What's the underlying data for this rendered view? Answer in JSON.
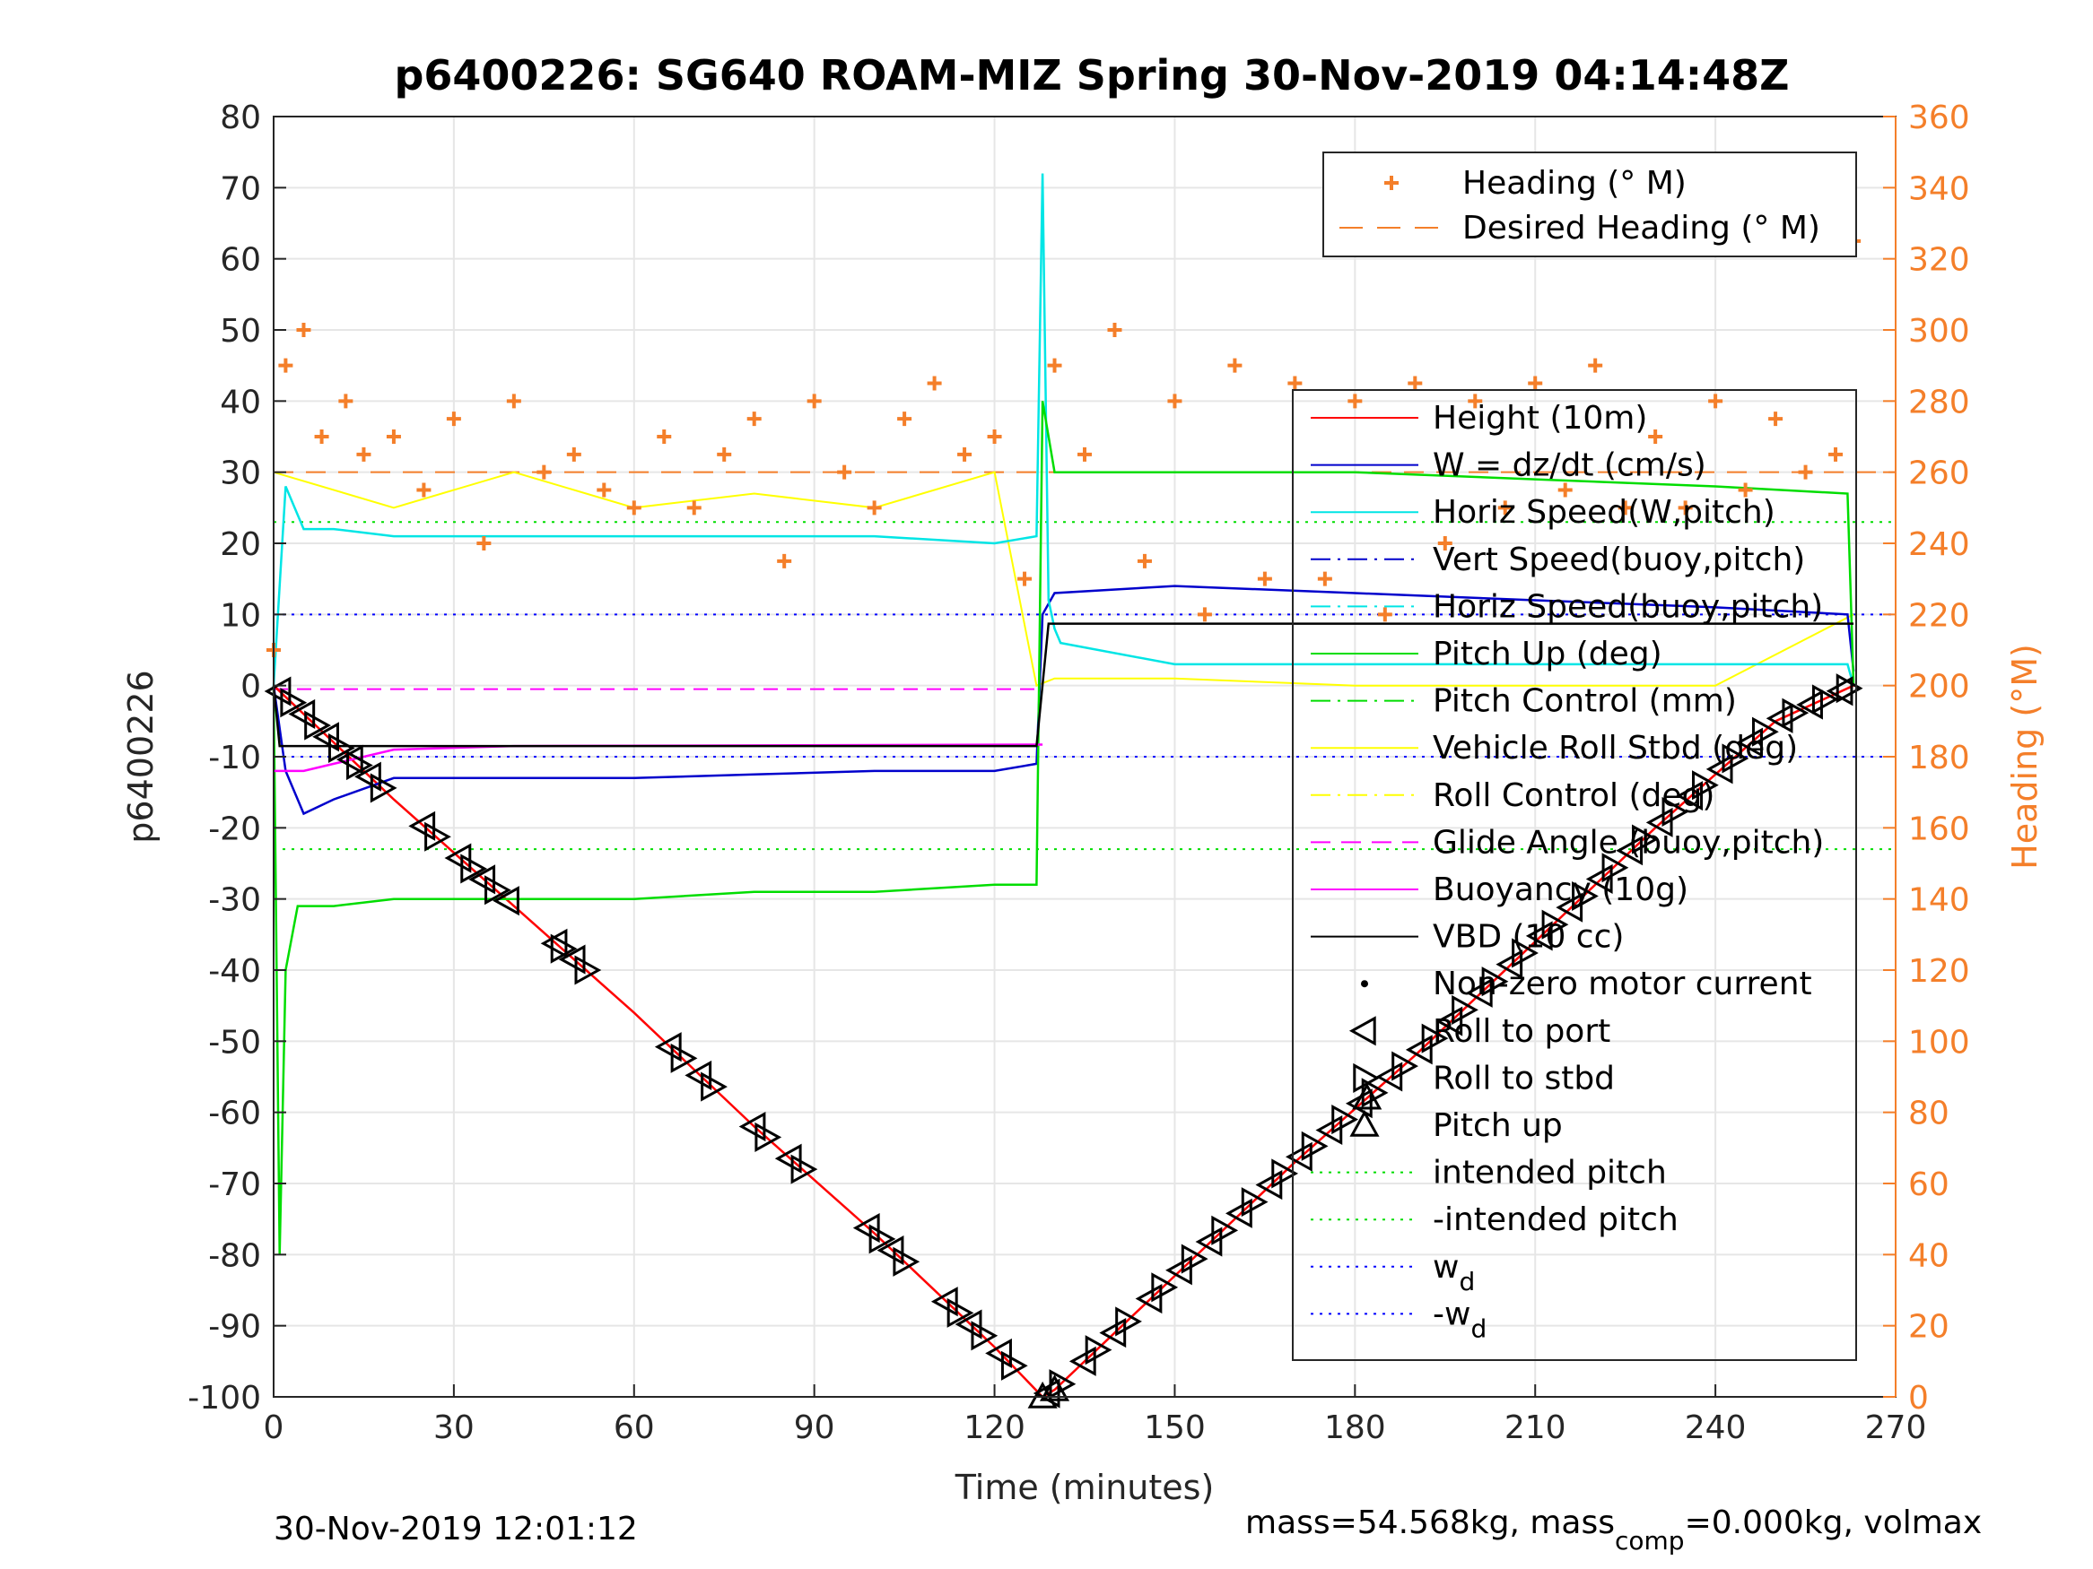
{
  "chart_data": {
    "type": "line",
    "title": "p6400226: SG640 ROAM-MIZ Spring 30-Nov-2019 04:14:48Z",
    "xlabel": "Time (minutes)",
    "ylabel_left": "p6400226",
    "ylabel_right": "Heading (°M)",
    "xlim": [
      0,
      270
    ],
    "ylim_left": [
      -100,
      80
    ],
    "ylim_right": [
      0,
      360
    ],
    "x_ticks": [
      0,
      30,
      60,
      90,
      120,
      150,
      180,
      210,
      240,
      270
    ],
    "y_ticks_left": [
      -100,
      -90,
      -80,
      -70,
      -60,
      -50,
      -40,
      -30,
      -20,
      -10,
      0,
      10,
      20,
      30,
      40,
      50,
      60,
      70,
      80
    ],
    "y_ticks_right": [
      0,
      20,
      40,
      60,
      80,
      100,
      120,
      140,
      160,
      180,
      200,
      220,
      240,
      260,
      280,
      300,
      320,
      340,
      360
    ],
    "grid": true,
    "footer_left": "30-Nov-2019 12:01:12",
    "footer_right_parts": [
      "mass=54.568kg, mass",
      "comp",
      "=0.000kg, volmax"
    ],
    "legend_heading": {
      "placement": "top-right",
      "entries": [
        {
          "label": "Heading (° M)",
          "color": "#f47f2a",
          "style": "plus"
        },
        {
          "label": "Desired Heading (° M)",
          "color": "#f47f2a",
          "style": "dashed"
        }
      ]
    },
    "legend_main": {
      "placement": "right",
      "entries": [
        {
          "label": "Height (10m)",
          "color": "#ff0000",
          "style": "solid"
        },
        {
          "label": "W = dz/dt (cm/s)",
          "color": "#0000cc",
          "style": "solid"
        },
        {
          "label": "Horiz Speed(W,pitch)",
          "color": "#00e5e5",
          "style": "solid"
        },
        {
          "label": "Vert Speed(buoy,pitch)",
          "color": "#0000cc",
          "style": "dashdot"
        },
        {
          "label": "Horiz Speed(buoy,pitch)",
          "color": "#00e5e5",
          "style": "dashdot"
        },
        {
          "label": "Pitch Up (deg)",
          "color": "#00dd00",
          "style": "solid"
        },
        {
          "label": "Pitch Control (mm)",
          "color": "#00dd00",
          "style": "dashdot"
        },
        {
          "label": "Vehicle Roll Stbd (deg)",
          "color": "#ffff00",
          "style": "solid"
        },
        {
          "label": "Roll Control (deg)",
          "color": "#ffff00",
          "style": "dashdot"
        },
        {
          "label": "Glide Angle (buoy,pitch)",
          "color": "#ff00ff",
          "style": "dashed"
        },
        {
          "label": "Buoyancy (10g)",
          "color": "#ff00ff",
          "style": "solid"
        },
        {
          "label": "VBD (10 cc)",
          "color": "#000000",
          "style": "solid"
        },
        {
          "label": "Non-zero motor current",
          "color": "#000000",
          "style": "dot"
        },
        {
          "label": "Roll to port",
          "color": "#000000",
          "style": "tri-left"
        },
        {
          "label": "Roll to stbd",
          "color": "#000000",
          "style": "tri-right"
        },
        {
          "label": "Pitch up",
          "color": "#000000",
          "style": "tri-up"
        },
        {
          "label": "intended pitch",
          "color": "#00dd00",
          "style": "dotted"
        },
        {
          "label": "-intended pitch",
          "color": "#00dd00",
          "style": "dotted"
        },
        {
          "label": "w",
          "sub": "d",
          "color": "#0000ff",
          "style": "dotted"
        },
        {
          "label": "-w",
          "sub": "d",
          "color": "#0000ff",
          "style": "dotted"
        }
      ]
    },
    "reference_lines": {
      "intended_pitch": [
        23,
        -23
      ],
      "w_d": [
        10,
        -10
      ],
      "glide_angle": -0.5,
      "desired_heading_deg": 260
    },
    "series": [
      {
        "name": "Height (10m)",
        "color": "#ff0000",
        "x": [
          0,
          10,
          20,
          40,
          60,
          80,
          100,
          120,
          128,
          130,
          150,
          170,
          190,
          210,
          230,
          250,
          263
        ],
        "values": [
          0,
          -8,
          -16,
          -31,
          -46,
          -62,
          -77,
          -93,
          -100,
          -99,
          -83,
          -67,
          -52,
          -36,
          -20,
          -5,
          0
        ]
      },
      {
        "name": "W = dz/dt (cm/s)",
        "color": "#0000cc",
        "x": [
          0,
          2,
          5,
          10,
          20,
          40,
          60,
          80,
          100,
          120,
          127,
          128,
          130,
          150,
          180,
          210,
          240,
          262,
          263
        ],
        "values": [
          0,
          -12,
          -18,
          -16,
          -13,
          -13,
          -13,
          -12.5,
          -12,
          -12,
          -11,
          10,
          13,
          14,
          13,
          12,
          11,
          10,
          2
        ]
      },
      {
        "name": "Horiz Speed(W,pitch)",
        "color": "#00e5e5",
        "x": [
          0,
          2,
          5,
          10,
          20,
          40,
          60,
          80,
          100,
          120,
          127,
          128,
          129,
          130,
          131,
          150,
          180,
          210,
          240,
          262,
          263
        ],
        "values": [
          0,
          28,
          22,
          22,
          21,
          21,
          21,
          21,
          21,
          20,
          21,
          72,
          12,
          8,
          6,
          3,
          3,
          3,
          3,
          3,
          0
        ]
      },
      {
        "name": "Pitch Up (deg)",
        "color": "#00dd00",
        "x": [
          0,
          1,
          2,
          4,
          10,
          20,
          40,
          60,
          80,
          100,
          120,
          127,
          128,
          130,
          150,
          180,
          210,
          240,
          262,
          263
        ],
        "values": [
          0,
          -80,
          -40,
          -31,
          -31,
          -30,
          -30,
          -30,
          -29,
          -29,
          -28,
          -28,
          40,
          30,
          30,
          30,
          29,
          28,
          27,
          0
        ]
      },
      {
        "name": "Buoyancy (10g)",
        "color": "#ff00ff",
        "x": [
          0,
          5,
          10,
          20,
          40,
          127,
          128
        ],
        "values": [
          -12,
          -12,
          -11,
          -9,
          -8.5,
          -8.3,
          -8.3
        ]
      },
      {
        "name": "VBD (10 cc)",
        "color": "#000000",
        "x": [
          0,
          1,
          127,
          129,
          263
        ],
        "values": [
          0,
          -8.5,
          -8.5,
          8.7,
          8.7
        ]
      },
      {
        "name": "Heading (° M)",
        "color": "#f47f2a",
        "axis": "right",
        "x": [
          0,
          2,
          5,
          8,
          12,
          15,
          20,
          25,
          30,
          35,
          40,
          45,
          50,
          55,
          60,
          65,
          70,
          75,
          80,
          85,
          90,
          95,
          100,
          105,
          110,
          115,
          120,
          125,
          130,
          135,
          140,
          145,
          150,
          155,
          160,
          165,
          170,
          175,
          180,
          185,
          190,
          195,
          200,
          205,
          210,
          215,
          220,
          225,
          230,
          235,
          240,
          245,
          250,
          255,
          260,
          263
        ],
        "values": [
          210,
          290,
          300,
          270,
          280,
          265,
          270,
          255,
          275,
          240,
          280,
          260,
          265,
          255,
          250,
          270,
          250,
          265,
          275,
          235,
          280,
          260,
          250,
          275,
          285,
          265,
          270,
          230,
          290,
          265,
          300,
          235,
          280,
          220,
          290,
          230,
          285,
          230,
          280,
          220,
          285,
          240,
          280,
          250,
          285,
          255,
          290,
          250,
          270,
          250,
          280,
          255,
          275,
          260,
          265,
          325
        ]
      },
      {
        "name": "Vehicle Roll Stbd (deg)",
        "color": "#ffff00",
        "x": [
          0,
          20,
          40,
          60,
          80,
          100,
          120,
          127,
          130,
          150,
          180,
          210,
          240,
          263
        ],
        "values": [
          30,
          25,
          30,
          25,
          27,
          25,
          30,
          0,
          1,
          1,
          0,
          0,
          0,
          10
        ]
      }
    ],
    "markers": {
      "roll_to_port_x": [
        1,
        5,
        9,
        13,
        16,
        25,
        31,
        35,
        39,
        47,
        50,
        66,
        71,
        80,
        86,
        99,
        103,
        112,
        116,
        121,
        129,
        135,
        140,
        146,
        151,
        156,
        161,
        166,
        171,
        176,
        181,
        186,
        191,
        196,
        201,
        206,
        211,
        216,
        221,
        226,
        231,
        236,
        241,
        246,
        251,
        256,
        261
      ],
      "roll_to_stbd_x": [
        3,
        7,
        11,
        14,
        18,
        27,
        33,
        37,
        48,
        52,
        68,
        73,
        82,
        88,
        101,
        105,
        114,
        118,
        123,
        131,
        137,
        142,
        148,
        153,
        158,
        163,
        168,
        173,
        178,
        183,
        188,
        193,
        198,
        203,
        208,
        213,
        218,
        223,
        228,
        233,
        238,
        243,
        248,
        253,
        258,
        262
      ],
      "pitch_up_x": [
        128,
        130,
        182
      ]
    }
  }
}
